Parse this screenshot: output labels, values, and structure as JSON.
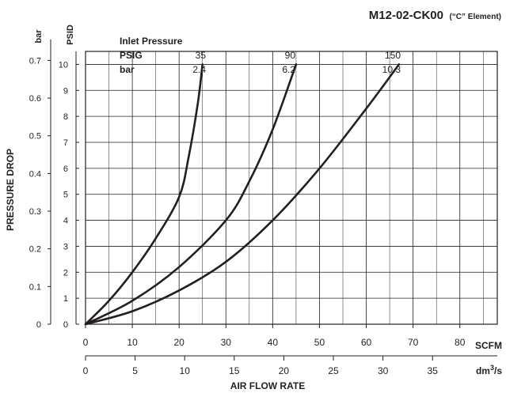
{
  "chart_data": {
    "type": "line",
    "title": {
      "main": "M12-02-CK00",
      "suffix": "(“C” Element)"
    },
    "xlabel": "AIR FLOW RATE",
    "ylabel": "PRESSURE DROP",
    "x_axis_primary": {
      "unit": "SCFM",
      "ticks": [
        0,
        10,
        20,
        30,
        40,
        50,
        60,
        70,
        80
      ],
      "range": [
        0,
        88
      ]
    },
    "x_axis_secondary": {
      "unit_base": "dm",
      "unit_sup": "3",
      "unit_tail": "/s",
      "ticks": [
        0,
        5,
        10,
        15,
        20,
        25,
        30,
        35
      ],
      "scfm_per_unit": 2.11888
    },
    "y_axis_primary": {
      "unit": "PSID",
      "ticks": [
        0,
        1,
        2,
        3,
        4,
        5,
        6,
        7,
        8,
        9,
        10
      ],
      "range": [
        0,
        10.5
      ]
    },
    "y_axis_secondary": {
      "unit": "bar",
      "ticks": [
        "0",
        "0.1",
        "0.2",
        "0.3",
        "0.4",
        "0.5",
        "0.6",
        "0.7"
      ],
      "psid_per_unit": 14.5038
    },
    "grid": true,
    "legend_table": {
      "header": "Inlet Pressure",
      "row_labels": [
        "PSIG",
        "bar"
      ],
      "columns": [
        {
          "psig": "35",
          "bar": "2.4"
        },
        {
          "psig": "90",
          "bar": "6.2"
        },
        {
          "psig": "150",
          "bar": "10.3"
        }
      ]
    },
    "series": [
      {
        "inlet_psig": "35",
        "x": [
          0,
          5,
          10,
          15,
          20,
          22,
          24,
          25
        ],
        "y": [
          0,
          0.9,
          2.0,
          3.3,
          4.9,
          6.4,
          8.5,
          10.0
        ]
      },
      {
        "inlet_psig": "90",
        "x": [
          0,
          10,
          20,
          30,
          35,
          40,
          45
        ],
        "y": [
          0,
          0.9,
          2.2,
          4.0,
          5.5,
          7.5,
          10.0
        ]
      },
      {
        "inlet_psig": "150",
        "x": [
          0,
          10,
          20,
          30,
          40,
          50,
          60,
          67
        ],
        "y": [
          0,
          0.5,
          1.3,
          2.4,
          4.0,
          6.0,
          8.3,
          10.0
        ]
      }
    ]
  }
}
